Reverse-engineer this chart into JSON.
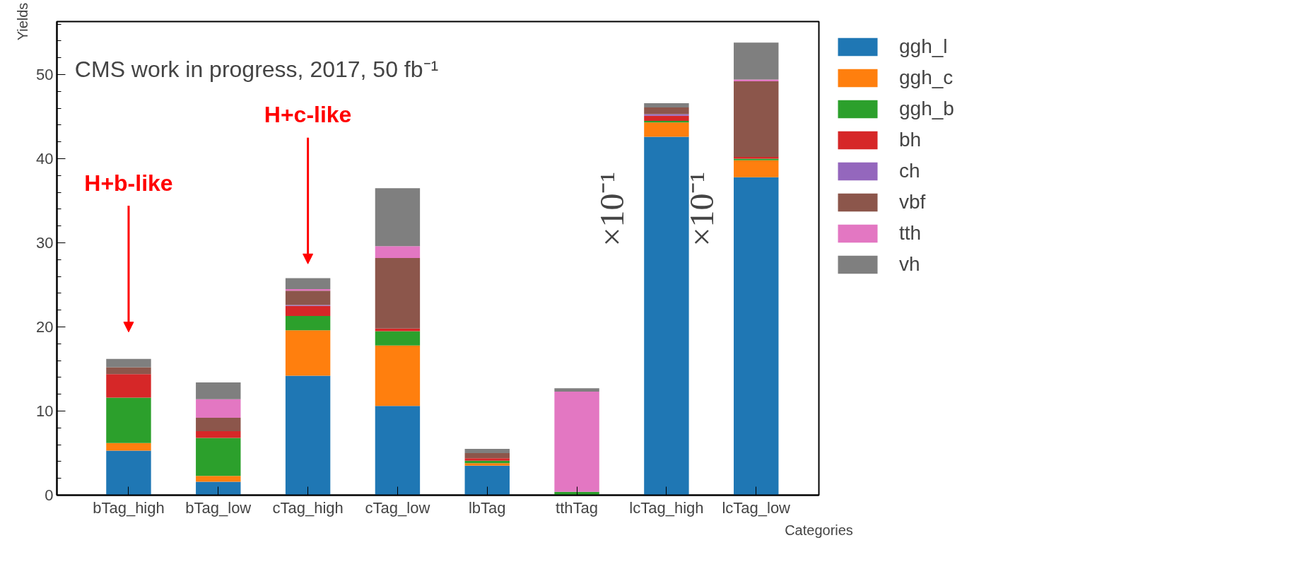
{
  "chart_data": {
    "type": "bar",
    "stacked": true,
    "xlabel": "Categories",
    "ylabel": "Yields",
    "categories": [
      "bTag_high",
      "bTag_low",
      "cTag_high",
      "cTag_low",
      "lbTag",
      "tthTag",
      "lcTag_high",
      "lcTag_low"
    ],
    "series": [
      {
        "name": "ggh_l",
        "color": "#1f77b4",
        "values": [
          5.3,
          1.6,
          14.2,
          10.6,
          3.5,
          0,
          42.6,
          37.8
        ]
      },
      {
        "name": "ggh_c",
        "color": "#ff7f0e",
        "values": [
          0.9,
          0.7,
          5.4,
          7.2,
          0.3,
          0,
          1.7,
          2.0
        ]
      },
      {
        "name": "ggh_b",
        "color": "#2ca02c",
        "values": [
          5.4,
          4.5,
          1.7,
          1.7,
          0.3,
          0.4,
          0.2,
          0.2
        ]
      },
      {
        "name": "bh",
        "color": "#d62728",
        "values": [
          2.8,
          0.8,
          1.2,
          0.3,
          0.3,
          0,
          0.6,
          0.2
        ]
      },
      {
        "name": "ch",
        "color": "#9467bd",
        "values": [
          0,
          0,
          0.1,
          0,
          0,
          0,
          0.2,
          0
        ]
      },
      {
        "name": "vbf",
        "color": "#8c564b",
        "values": [
          0.8,
          1.6,
          1.7,
          8.4,
          0.6,
          0,
          0.8,
          9.0
        ]
      },
      {
        "name": "tth",
        "color": "#e377c2",
        "values": [
          0,
          2.2,
          0.2,
          1.4,
          0,
          11.9,
          0,
          0.2
        ]
      },
      {
        "name": "vh",
        "color": "#7f7f7f",
        "values": [
          1.0,
          2.0,
          1.3,
          6.9,
          0.5,
          0.4,
          0.5,
          4.4
        ]
      }
    ],
    "ylim": [
      0,
      56.3
    ],
    "yticks": [
      0,
      10,
      20,
      30,
      40,
      50
    ],
    "legend": "right",
    "grid": false,
    "annotations": [
      "CMS work in progress, 2017, 50 fb⁻¹",
      "H+b-like",
      "H+c-like",
      "×10⁻¹",
      "×10⁻¹"
    ]
  }
}
